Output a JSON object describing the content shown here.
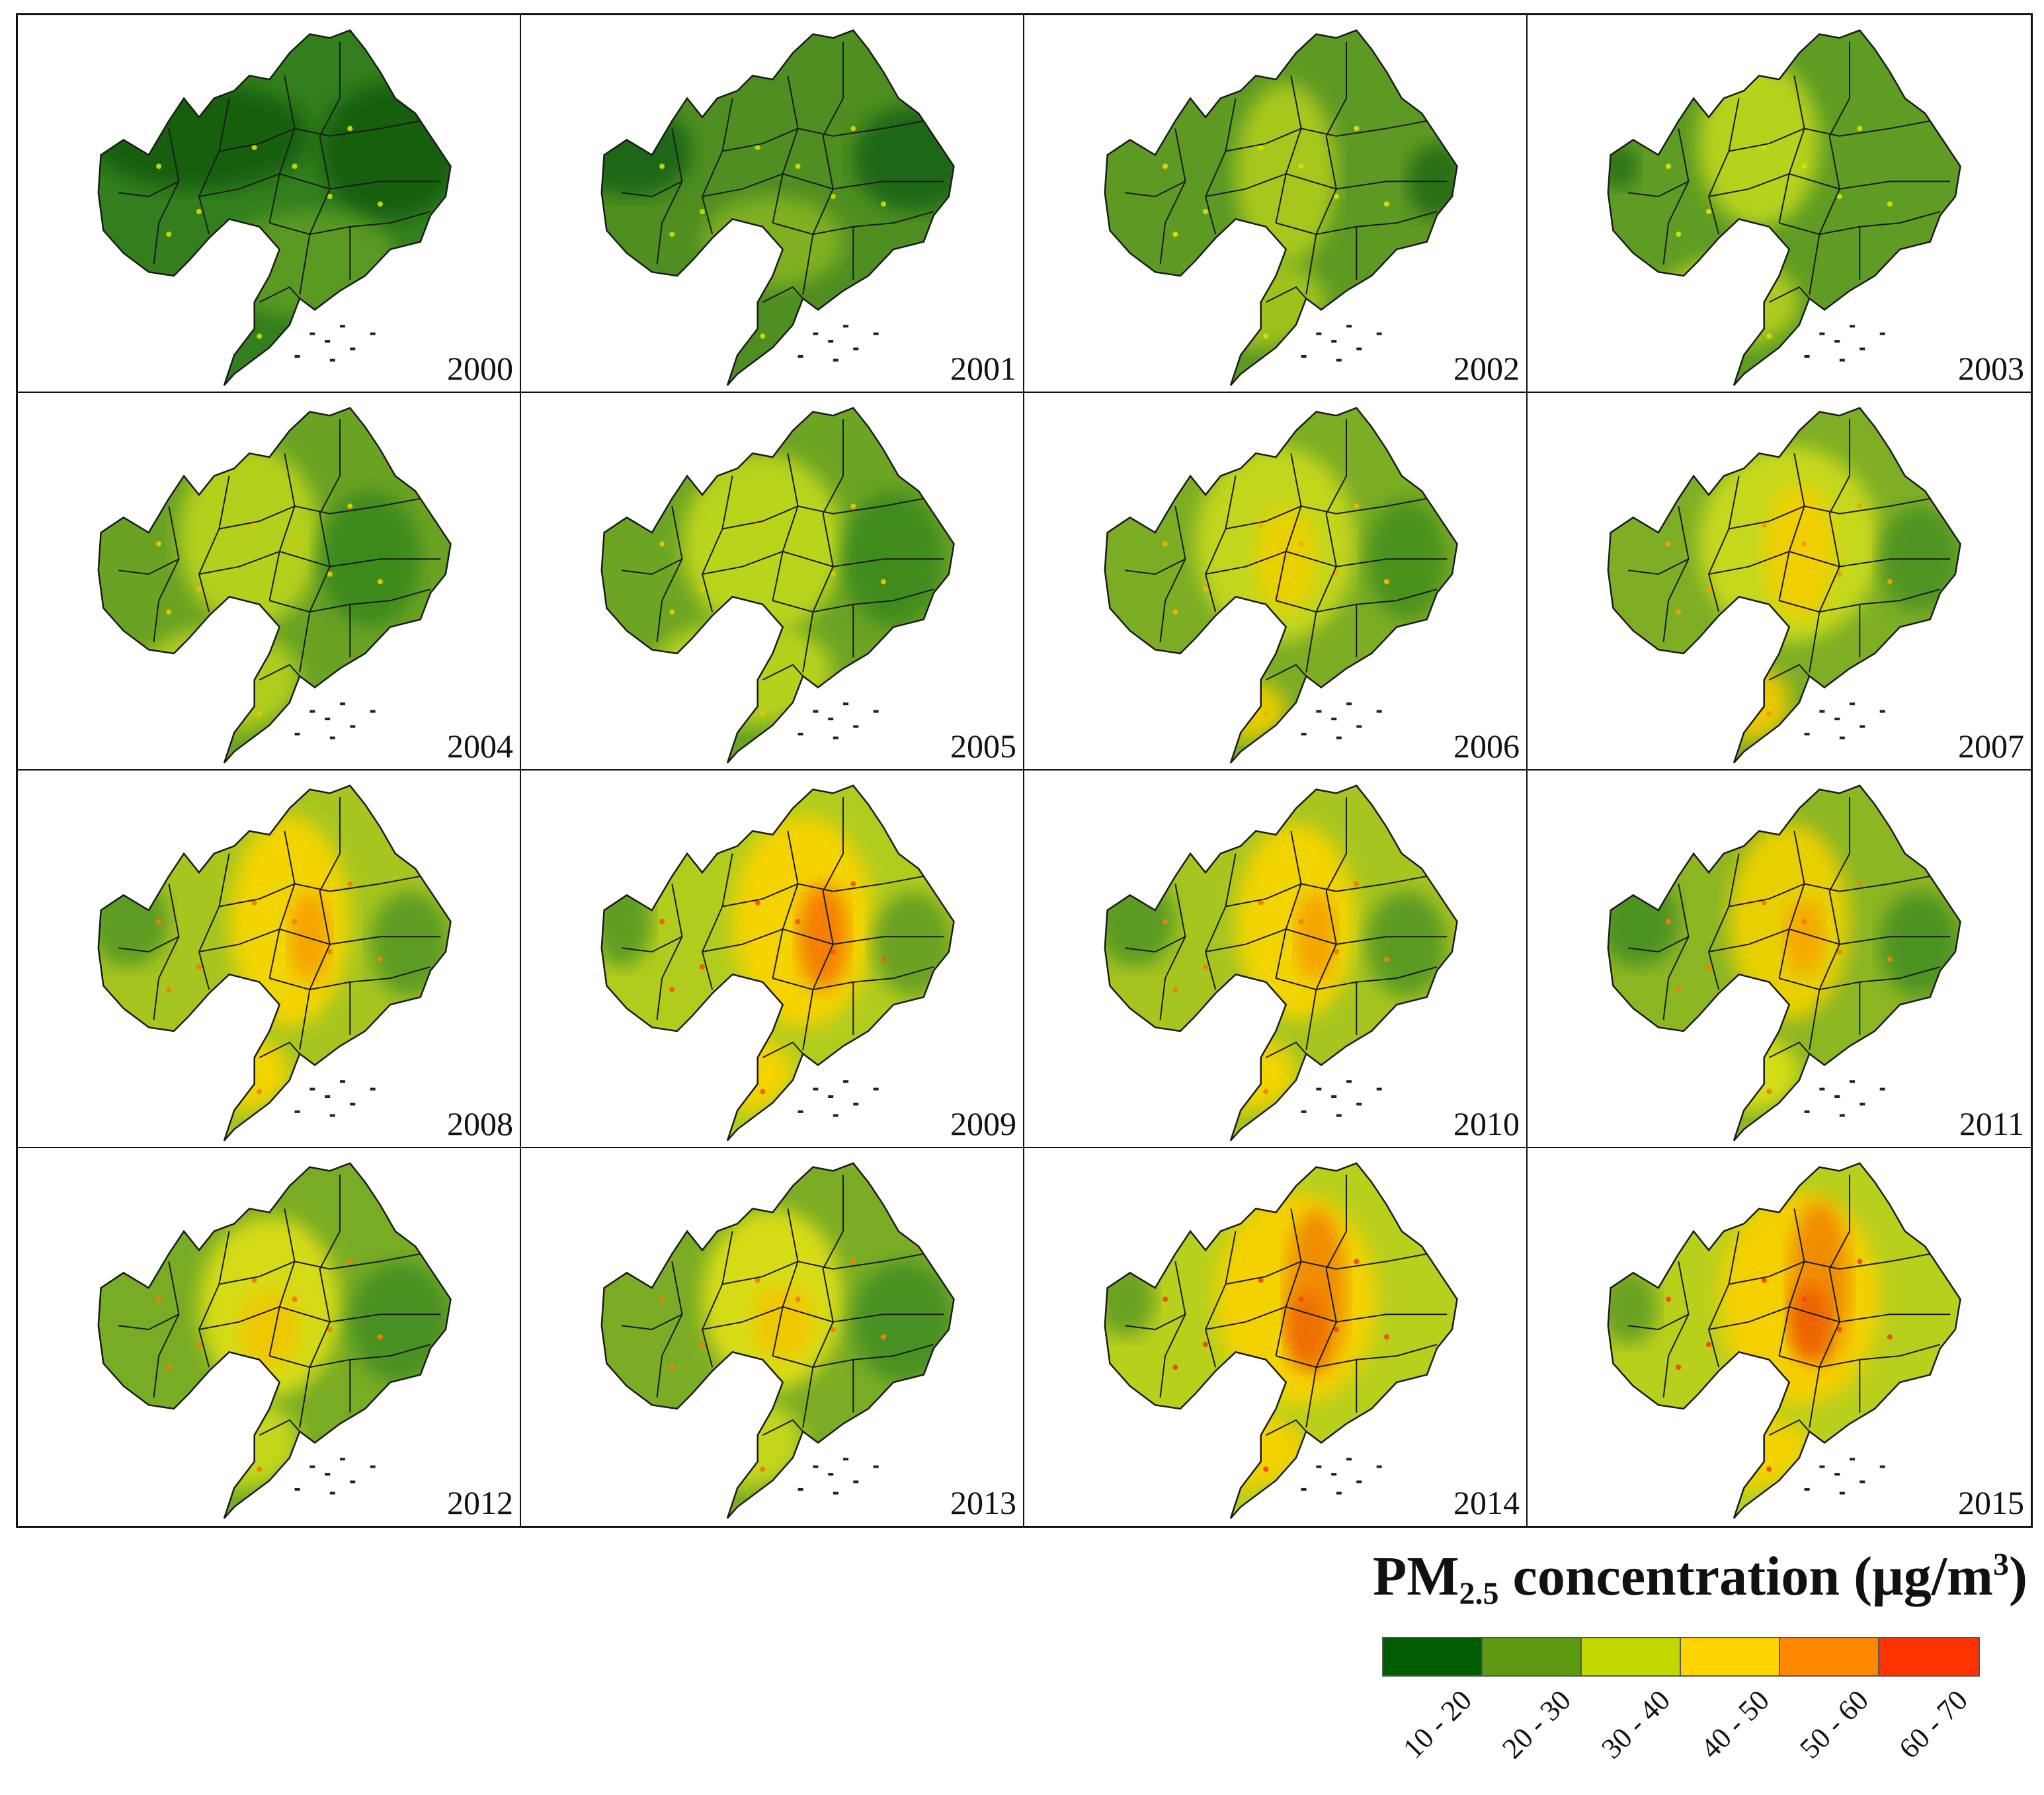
{
  "panels": [
    {
      "year": "2000",
      "bg": "#337f1e",
      "blobs": [
        [
          "#175f0f",
          0.36,
          0.32,
          0.22,
          0.14
        ],
        [
          "#175f0f",
          0.74,
          0.36,
          0.14,
          0.18
        ],
        [
          "#5a9a22",
          0.58,
          0.66,
          0.18,
          0.14
        ]
      ],
      "dots": [
        "#c4d600"
      ]
    },
    {
      "year": "2001",
      "bg": "#4f8e20",
      "blobs": [
        [
          "#1f6712",
          0.22,
          0.36,
          0.12,
          0.12
        ],
        [
          "#1f6712",
          0.78,
          0.38,
          0.12,
          0.14
        ],
        [
          "#7fb024",
          0.5,
          0.6,
          0.14,
          0.12
        ]
      ],
      "dots": [
        "#c4d600"
      ]
    },
    {
      "year": "2002",
      "bg": "#5d9a23",
      "blobs": [
        [
          "#a8c71e",
          0.52,
          0.42,
          0.1,
          0.24
        ],
        [
          "#9ec21e",
          0.46,
          0.76,
          0.14,
          0.12
        ],
        [
          "#2a7017",
          0.82,
          0.44,
          0.06,
          0.1
        ]
      ],
      "dots": [
        "#d2df00"
      ]
    },
    {
      "year": "2003",
      "bg": "#5f9c23",
      "blobs": [
        [
          "#b6d21c",
          0.46,
          0.34,
          0.12,
          0.22
        ],
        [
          "#aecb1d",
          0.4,
          0.76,
          0.14,
          0.12
        ],
        [
          "#2d7318",
          0.18,
          0.4,
          0.04,
          0.06
        ]
      ],
      "dots": [
        "#d2df00"
      ]
    },
    {
      "year": "2004",
      "bg": "#6aa224",
      "blobs": [
        [
          "#b4d01d",
          0.46,
          0.38,
          0.14,
          0.24
        ],
        [
          "#b0cd1d",
          0.4,
          0.76,
          0.16,
          0.14
        ],
        [
          "#3d8a1e",
          0.7,
          0.44,
          0.1,
          0.18
        ]
      ],
      "dots": [
        "#e3c400"
      ]
    },
    {
      "year": "2005",
      "bg": "#6ca424",
      "blobs": [
        [
          "#bad41c",
          0.48,
          0.4,
          0.16,
          0.24
        ],
        [
          "#b6d11c",
          0.44,
          0.74,
          0.18,
          0.14
        ],
        [
          "#3f8b1f",
          0.74,
          0.44,
          0.1,
          0.18
        ]
      ],
      "dots": [
        "#e3c400"
      ]
    },
    {
      "year": "2006",
      "bg": "#7bad25",
      "blobs": [
        [
          "#c2d61b",
          0.5,
          0.4,
          0.16,
          0.26
        ],
        [
          "#ead000",
          0.52,
          0.44,
          0.06,
          0.14
        ],
        [
          "#e6cc00",
          0.44,
          0.84,
          0.08,
          0.08
        ],
        [
          "#4c921f",
          0.76,
          0.44,
          0.08,
          0.16
        ]
      ],
      "dots": [
        "#f2b000"
      ]
    },
    {
      "year": "2007",
      "bg": "#7dae25",
      "blobs": [
        [
          "#c6d81b",
          0.52,
          0.4,
          0.18,
          0.26
        ],
        [
          "#f0cf00",
          0.54,
          0.42,
          0.07,
          0.18
        ],
        [
          "#ecc800",
          0.44,
          0.82,
          0.08,
          0.1
        ],
        [
          "#4f9420",
          0.78,
          0.44,
          0.08,
          0.14
        ]
      ],
      "dots": [
        "#f2a000"
      ]
    },
    {
      "year": "2008",
      "bg": "#a6c51f",
      "blobs": [
        [
          "#f2d400",
          0.54,
          0.4,
          0.12,
          0.28
        ],
        [
          "#f5a300",
          0.58,
          0.44,
          0.04,
          0.12
        ],
        [
          "#f2d400",
          0.44,
          0.8,
          0.1,
          0.1
        ],
        [
          "#5d9c22",
          0.22,
          0.4,
          0.08,
          0.12
        ],
        [
          "#5d9c22",
          0.78,
          0.46,
          0.08,
          0.14
        ]
      ],
      "dots": [
        "#f08200"
      ]
    },
    {
      "year": "2009",
      "bg": "#b2cc1d",
      "blobs": [
        [
          "#f4d300",
          0.56,
          0.4,
          0.14,
          0.28
        ],
        [
          "#f57f00",
          0.6,
          0.44,
          0.05,
          0.14
        ],
        [
          "#f4d300",
          0.44,
          0.8,
          0.1,
          0.1
        ],
        [
          "#5f9d22",
          0.2,
          0.4,
          0.06,
          0.12
        ],
        [
          "#6aa224",
          0.78,
          0.46,
          0.08,
          0.14
        ]
      ],
      "dots": [
        "#f06000"
      ]
    },
    {
      "year": "2010",
      "bg": "#a6c51f",
      "blobs": [
        [
          "#f2d400",
          0.54,
          0.4,
          0.12,
          0.26
        ],
        [
          "#f5a300",
          0.58,
          0.44,
          0.04,
          0.12
        ],
        [
          "#f2d400",
          0.44,
          0.8,
          0.1,
          0.1
        ],
        [
          "#5b9b22",
          0.22,
          0.4,
          0.08,
          0.12
        ],
        [
          "#5b9b22",
          0.76,
          0.46,
          0.08,
          0.14
        ]
      ],
      "dots": [
        "#f08200"
      ]
    },
    {
      "year": "2011",
      "bg": "#8db623",
      "blobs": [
        [
          "#e8d000",
          0.52,
          0.4,
          0.12,
          0.26
        ],
        [
          "#f5a800",
          0.55,
          0.44,
          0.04,
          0.1
        ],
        [
          "#d5dd12",
          0.44,
          0.8,
          0.1,
          0.1
        ],
        [
          "#4d9320",
          0.22,
          0.4,
          0.08,
          0.12
        ],
        [
          "#4d9320",
          0.78,
          0.46,
          0.08,
          0.14
        ]
      ],
      "dots": [
        "#f08200"
      ]
    },
    {
      "year": "2012",
      "bg": "#79ac25",
      "blobs": [
        [
          "#d6db12",
          0.5,
          0.42,
          0.14,
          0.24
        ],
        [
          "#f0c800",
          0.5,
          0.48,
          0.06,
          0.1
        ],
        [
          "#c4d61b",
          0.44,
          0.78,
          0.12,
          0.12
        ],
        [
          "#4a9120",
          0.76,
          0.46,
          0.1,
          0.16
        ]
      ],
      "dots": [
        "#f08200"
      ]
    },
    {
      "year": "2013",
      "bg": "#7aad25",
      "blobs": [
        [
          "#d8dc12",
          0.5,
          0.4,
          0.14,
          0.24
        ],
        [
          "#f0c800",
          0.52,
          0.46,
          0.06,
          0.1
        ],
        [
          "#c4d61b",
          0.44,
          0.78,
          0.12,
          0.12
        ],
        [
          "#4a9120",
          0.76,
          0.46,
          0.1,
          0.16
        ]
      ],
      "dots": [
        "#f08200"
      ]
    },
    {
      "year": "2014",
      "bg": "#b8cf1c",
      "blobs": [
        [
          "#f4d200",
          0.54,
          0.4,
          0.16,
          0.28
        ],
        [
          "#f08c00",
          0.58,
          0.38,
          0.06,
          0.22
        ],
        [
          "#ee6e00",
          0.56,
          0.48,
          0.04,
          0.1
        ],
        [
          "#f2d200",
          0.44,
          0.8,
          0.12,
          0.1
        ],
        [
          "#6aa224",
          0.2,
          0.4,
          0.06,
          0.1
        ]
      ],
      "dots": [
        "#f05000"
      ]
    },
    {
      "year": "2015",
      "bg": "#b8cf1c",
      "blobs": [
        [
          "#f4d000",
          0.54,
          0.4,
          0.16,
          0.28
        ],
        [
          "#f08c00",
          0.58,
          0.36,
          0.06,
          0.22
        ],
        [
          "#ee6200",
          0.56,
          0.46,
          0.04,
          0.1
        ],
        [
          "#f2d200",
          0.44,
          0.8,
          0.12,
          0.1
        ],
        [
          "#6aa224",
          0.2,
          0.42,
          0.06,
          0.1
        ]
      ],
      "dots": [
        "#f05000"
      ]
    }
  ],
  "legend": {
    "title_main": "PM",
    "title_sub": "2.5",
    "title_rest": " concentration (μg/m",
    "title_sup": "3",
    "title_end": ")",
    "classes": [
      {
        "label": "10 - 20",
        "color": "#005c00"
      },
      {
        "label": "20 - 30",
        "color": "#5d9a0f"
      },
      {
        "label": "30 - 40",
        "color": "#c2d900"
      },
      {
        "label": "40 - 50",
        "color": "#ffd500"
      },
      {
        "label": "50 - 60",
        "color": "#ff8800"
      },
      {
        "label": "60 - 70",
        "color": "#ff3300"
      }
    ]
  }
}
